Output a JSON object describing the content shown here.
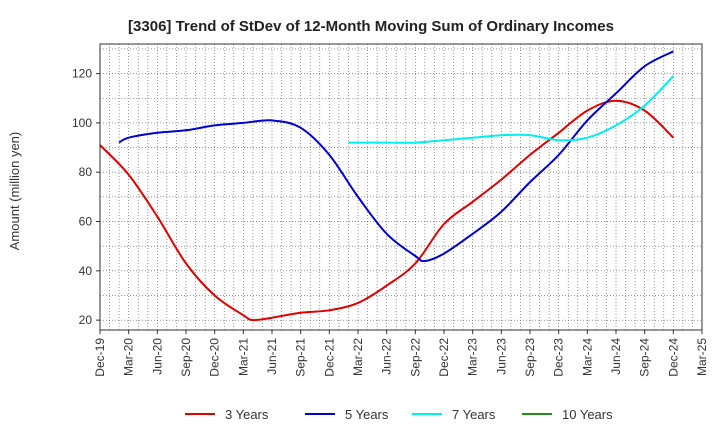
{
  "chart_data": {
    "type": "line",
    "title": "[3306]  Trend of StDev of 12-Month Moving Sum of Ordinary Incomes",
    "xlabel": "",
    "ylabel": "Amount (million yen)",
    "ylim": [
      16,
      132
    ],
    "yticks": [
      20,
      40,
      60,
      80,
      100,
      120
    ],
    "xticks": [
      "Dec-19",
      "Mar-20",
      "Jun-20",
      "Sep-20",
      "Dec-20",
      "Mar-21",
      "Jun-21",
      "Sep-21",
      "Dec-21",
      "Mar-22",
      "Jun-22",
      "Sep-22",
      "Dec-22",
      "Mar-23",
      "Jun-23",
      "Sep-23",
      "Dec-23",
      "Mar-24",
      "Jun-24",
      "Sep-24",
      "Dec-24",
      "Mar-25"
    ],
    "grid": true,
    "legend_position": "bottom",
    "series": [
      {
        "name": "3 Years",
        "color": "#dd0000",
        "points": [
          [
            "Dec-19",
            91
          ],
          [
            "Mar-20",
            79
          ],
          [
            "Jun-20",
            62
          ],
          [
            "Sep-20",
            43
          ],
          [
            "Dec-20",
            30
          ],
          [
            "Mar-21",
            22
          ],
          [
            "Apr-21",
            20
          ],
          [
            "Jun-21",
            21
          ],
          [
            "Sep-21",
            23
          ],
          [
            "Dec-21",
            24
          ],
          [
            "Mar-22",
            27
          ],
          [
            "Jun-22",
            34
          ],
          [
            "Sep-22",
            43
          ],
          [
            "Dec-22",
            59
          ],
          [
            "Mar-23",
            68
          ],
          [
            "Jun-23",
            77
          ],
          [
            "Sep-23",
            87
          ],
          [
            "Dec-23",
            96
          ],
          [
            "Mar-24",
            105
          ],
          [
            "Jun-24",
            109
          ],
          [
            "Sep-24",
            105
          ],
          [
            "Dec-24",
            94
          ]
        ]
      },
      {
        "name": "5 Years",
        "color": "#0000cc",
        "points": [
          [
            "Feb-20",
            92
          ],
          [
            "Mar-20",
            94
          ],
          [
            "Jun-20",
            96
          ],
          [
            "Sep-20",
            97
          ],
          [
            "Dec-20",
            99
          ],
          [
            "Mar-21",
            100
          ],
          [
            "Jun-21",
            101
          ],
          [
            "Sep-21",
            98
          ],
          [
            "Dec-21",
            87
          ],
          [
            "Mar-22",
            70
          ],
          [
            "Jun-22",
            55
          ],
          [
            "Sep-22",
            46
          ],
          [
            "Oct-22",
            44
          ],
          [
            "Dec-22",
            47
          ],
          [
            "Mar-23",
            55
          ],
          [
            "Jun-23",
            64
          ],
          [
            "Sep-23",
            76
          ],
          [
            "Dec-23",
            87
          ],
          [
            "Mar-24",
            101
          ],
          [
            "Jun-24",
            112
          ],
          [
            "Sep-24",
            123
          ],
          [
            "Dec-24",
            129
          ]
        ]
      },
      {
        "name": "7 Years",
        "color": "#00eeee",
        "points": [
          [
            "Feb-22",
            92
          ],
          [
            "Jun-22",
            92
          ],
          [
            "Sep-22",
            92
          ],
          [
            "Dec-22",
            93
          ],
          [
            "Mar-23",
            94
          ],
          [
            "Jun-23",
            95
          ],
          [
            "Sep-23",
            95
          ],
          [
            "Dec-23",
            93
          ],
          [
            "Mar-24",
            94
          ],
          [
            "Jun-24",
            99
          ],
          [
            "Sep-24",
            107
          ],
          [
            "Dec-24",
            119
          ]
        ]
      },
      {
        "name": "10 Years",
        "color": "#228b22",
        "points": []
      }
    ]
  }
}
